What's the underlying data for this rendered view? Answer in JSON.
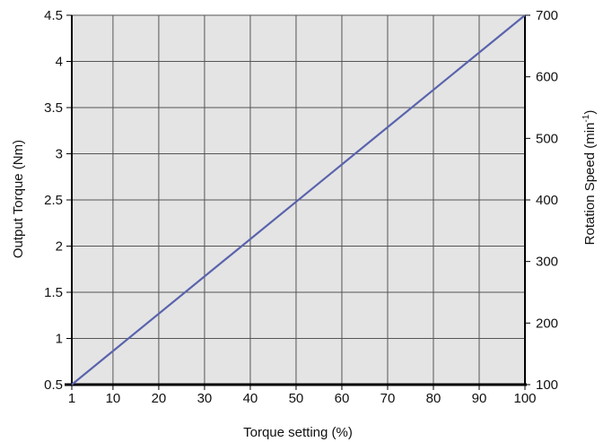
{
  "chart_data": {
    "type": "line",
    "xlabel": "Torque setting (%)",
    "ylabel": "Output Torque (Nm)",
    "y2label": {
      "main": "Rotation Speed (min",
      "sup": "-1",
      "end": ")"
    },
    "xlim": [
      1,
      100
    ],
    "ylim": [
      0.5,
      4.5
    ],
    "y2lim": [
      100,
      700
    ],
    "x_ticks": [
      1,
      10,
      20,
      30,
      40,
      50,
      60,
      70,
      80,
      90,
      100
    ],
    "y_ticks": [
      0.5,
      1,
      1.5,
      2,
      2.5,
      3,
      3.5,
      4,
      4.5
    ],
    "y2_ticks": [
      100,
      200,
      300,
      400,
      500,
      600,
      700
    ],
    "grid": true,
    "series": [
      {
        "x": [
          1,
          100
        ],
        "y": [
          0.5,
          4.5
        ]
      }
    ],
    "colors": {
      "plot_background": "#e4e4e4",
      "grid": "#555555",
      "line": "#5a63ad",
      "axis": "#000000"
    }
  }
}
